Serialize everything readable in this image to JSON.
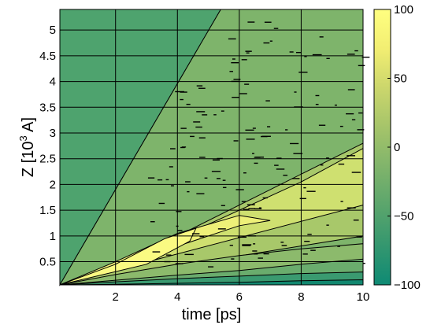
{
  "chart_data": {
    "type": "heatmap",
    "subtype": "filled-contour",
    "title": "",
    "xlabel": "time [ps]",
    "ylabel_base": "Z [10",
    "ylabel_exp": "3",
    "ylabel_tail": " A]",
    "xlim": [
      0.2,
      10
    ],
    "ylim": [
      0.05,
      5.4
    ],
    "xticks": [
      2,
      4,
      6,
      8,
      10
    ],
    "xtick_labels": [
      "2",
      "4",
      "6",
      "8",
      "10"
    ],
    "yticks": [
      0.5,
      1,
      1.5,
      2,
      2.5,
      3,
      3.5,
      4,
      4.5,
      5
    ],
    "ytick_labels": [
      "0.5",
      "1",
      "1.5",
      "2",
      "2.5",
      "3",
      "3.5",
      "4",
      "4.5",
      "5"
    ],
    "grid": true,
    "colorbar": {
      "range": [
        -100,
        100
      ],
      "ticks": [
        -100,
        -50,
        0,
        50,
        100
      ],
      "tick_labels": [
        "−100",
        "−50",
        "0",
        "50",
        "100"
      ],
      "colors": [
        "#0e8a74",
        "#34976f",
        "#5aa56c",
        "#80b46b",
        "#a5c46a",
        "#cbd66c",
        "#f2ee72",
        "#ffff80"
      ]
    },
    "bands": [
      {
        "level": -80,
        "color": "#4ea36e",
        "bound": [
          [
            0.2,
            0.05
          ],
          [
            5.4,
            5.4
          ],
          [
            0.2,
            5.4
          ]
        ]
      },
      {
        "level": -40,
        "color": "#7eb46b",
        "bound": [
          [
            0.2,
            0.05
          ],
          [
            10,
            0.6
          ],
          [
            10,
            5.4
          ],
          [
            5.4,
            5.4
          ]
        ]
      },
      {
        "level": -10,
        "color": "#a8c86a",
        "bound": [
          [
            0.2,
            0.05
          ],
          [
            10,
            1.0
          ],
          [
            10,
            2.8
          ],
          [
            8,
            2.2
          ],
          [
            6,
            1.6
          ],
          [
            4,
            1.0
          ],
          [
            2,
            0.45
          ]
        ]
      },
      {
        "level": 30,
        "color": "#cfe070",
        "bound": [
          [
            0.2,
            0.05
          ],
          [
            10,
            1.6
          ],
          [
            10,
            2.7
          ],
          [
            8,
            2.05
          ],
          [
            6,
            1.5
          ],
          [
            4,
            0.95
          ],
          [
            2,
            0.45
          ]
        ]
      },
      {
        "level": 60,
        "color": "#eef078",
        "bound": [
          [
            0.2,
            0.05
          ],
          [
            4,
            0.8
          ],
          [
            6,
            1.2
          ],
          [
            7,
            1.3
          ],
          [
            6,
            1.4
          ],
          [
            4,
            1.05
          ],
          [
            2,
            0.5
          ]
        ]
      },
      {
        "level": 85,
        "color": "#fafa82",
        "bound": [
          [
            0.2,
            0.05
          ],
          [
            3,
            0.45
          ],
          [
            4.4,
            0.9
          ],
          [
            4.6,
            1.15
          ],
          [
            3.6,
            0.95
          ],
          [
            2,
            0.45
          ]
        ]
      },
      {
        "level": -30,
        "color": "#8cba6c",
        "bound": [
          [
            0.2,
            0.05
          ],
          [
            10,
            0.3
          ],
          [
            10,
            0.85
          ],
          [
            8,
            0.75
          ],
          [
            6,
            0.62
          ],
          [
            4,
            0.45
          ],
          [
            2,
            0.25
          ]
        ]
      },
      {
        "level": -55,
        "color": "#6aac6d",
        "bound": [
          [
            0.2,
            0.05
          ],
          [
            10,
            0.15
          ],
          [
            10,
            0.55
          ],
          [
            8,
            0.45
          ],
          [
            6,
            0.33
          ],
          [
            4,
            0.24
          ],
          [
            2,
            0.14
          ]
        ]
      },
      {
        "level": -75,
        "color": "#3a9a70",
        "bound": [
          [
            0.2,
            0.05
          ],
          [
            10,
            0.05
          ],
          [
            10,
            0.3
          ],
          [
            8,
            0.27
          ],
          [
            6,
            0.22
          ],
          [
            4,
            0.17
          ],
          [
            2,
            0.11
          ]
        ]
      },
      {
        "level": -95,
        "color": "#11876f",
        "bound": [
          [
            0.2,
            0.05
          ],
          [
            10,
            0.05
          ],
          [
            10,
            0.15
          ],
          [
            8,
            0.13
          ],
          [
            6,
            0.1
          ],
          [
            4,
            0.08
          ],
          [
            2,
            0.06
          ]
        ]
      }
    ]
  }
}
